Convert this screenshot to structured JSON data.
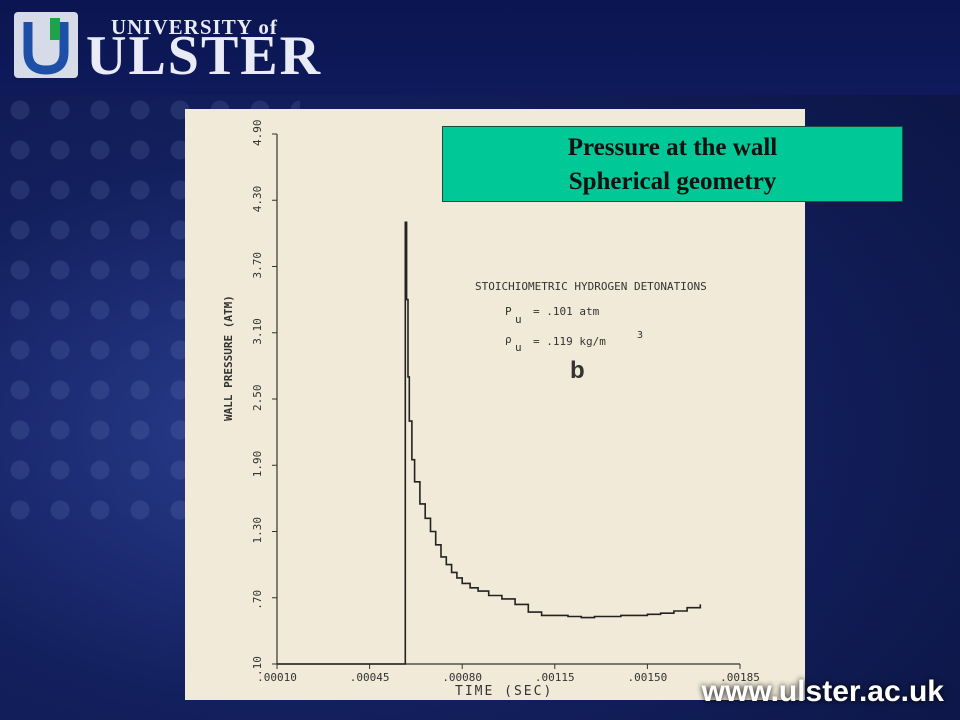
{
  "header": {
    "logo_line1": "UNIVERSITY of",
    "logo_line2": "ULSTER"
  },
  "callout": {
    "line1": "Pressure at the wall",
    "line2": "Spherical geometry"
  },
  "footer_url": "www.ulster.ac.uk",
  "colors": {
    "background": "#13205e",
    "callout": "#00c896",
    "scan_paper": "#f1ead8"
  },
  "chart_data": {
    "type": "line",
    "xlabel": "TIME (SEC)",
    "ylabel": "WALL PRESSURE (ATM)",
    "x_ticks": [
      ".00010",
      ".00045",
      ".00080",
      ".00115",
      ".00150",
      ".00185"
    ],
    "y_ticks": [
      ".10",
      ".70",
      "1.30",
      "1.90",
      "2.50",
      "3.10",
      "3.70",
      "4.30",
      "4.90"
    ],
    "xlim": [
      0.0001,
      0.00185
    ],
    "ylim": [
      0.1,
      4.9
    ],
    "annotations": {
      "heading": "STOICHIOMETRIC HYDROGEN DETONATIONS",
      "pressure_label": "P",
      "pressure_sub": "u",
      "pressure_value": "= .101 atm",
      "density_label": "ρ",
      "density_sub": "u",
      "density_value": "= .119 kg/m",
      "density_exp": "3",
      "panel_letter": "b"
    },
    "series": [
      {
        "x": [
          0.0001,
          0.000575,
          0.000585,
          0.00059,
          0.000595,
          0.0006,
          0.00061,
          0.00062,
          0.00064,
          0.00066,
          0.00068,
          0.0007,
          0.00072,
          0.00074,
          0.00076,
          0.00078,
          0.0008,
          0.00083,
          0.00086,
          0.0009,
          0.00095,
          0.001,
          0.00105,
          0.0011,
          0.00115,
          0.0012,
          0.00125,
          0.0013,
          0.00135,
          0.0014,
          0.00145,
          0.0015,
          0.00155,
          0.0016,
          0.00165,
          0.0017
        ],
        "y": [
          0.1,
          0.1,
          4.1,
          3.4,
          2.7,
          2.3,
          1.95,
          1.75,
          1.55,
          1.42,
          1.3,
          1.18,
          1.07,
          1.0,
          0.93,
          0.88,
          0.83,
          0.79,
          0.76,
          0.72,
          0.69,
          0.64,
          0.57,
          0.54,
          0.54,
          0.53,
          0.52,
          0.53,
          0.53,
          0.54,
          0.54,
          0.55,
          0.56,
          0.58,
          0.61,
          0.64
        ]
      }
    ]
  }
}
